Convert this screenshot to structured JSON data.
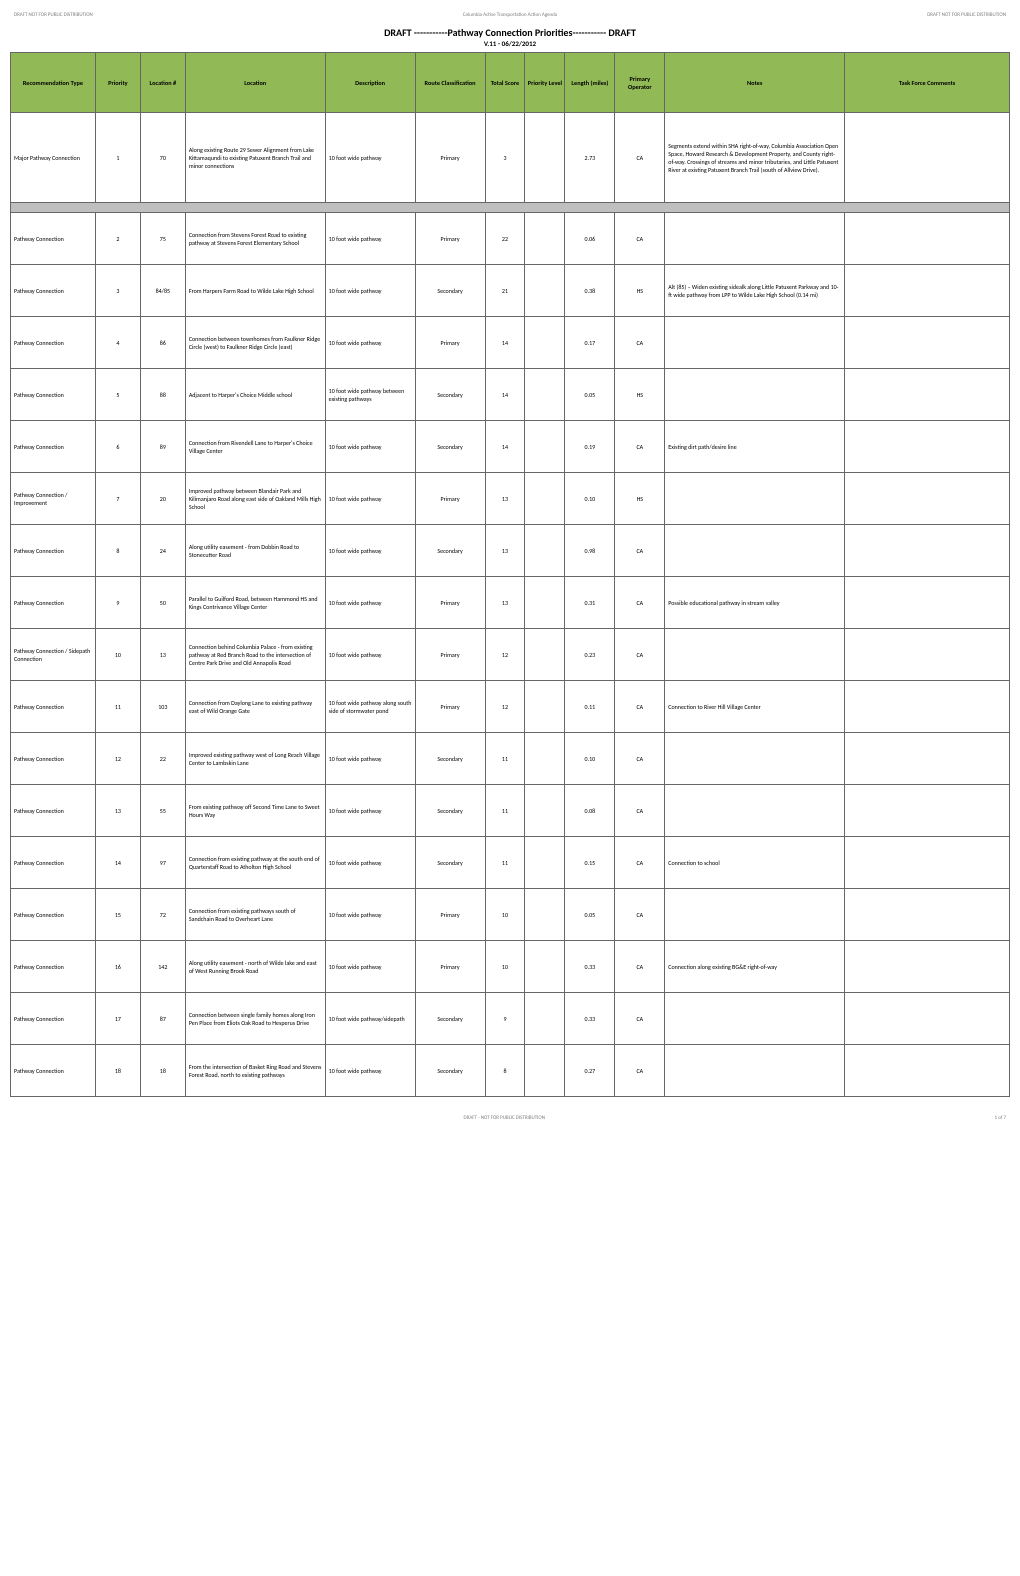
{
  "header": {
    "left_label": "DRAFT NOT FOR PUBLIC DISTRIBUTION",
    "center_label": "Columbia Active Transportation Action Agenda",
    "right_label": "DRAFT NOT FOR PUBLIC DISTRIBUTION",
    "title": "DRAFT -----------Pathway Connection Priorities----------- DRAFT",
    "subtitle": "V.11 - 06/22/2012"
  },
  "columns": [
    "Recommendation Type",
    "Priority",
    "Location #",
    "Location",
    "Description",
    "Route Classification",
    "Total Score",
    "Priority Level",
    "Length (miles)",
    "Primary Operator",
    "Notes",
    "Task Force Comments"
  ],
  "rows": [
    {
      "type": "Major Pathway Connection",
      "priority": "1",
      "loc": "70",
      "location": "Along existing Route 29 Sewer Alignment from Lake Kittamaqundi to existing Patuxent Branch Trail and minor connections",
      "desc": "10 foot wide pathway",
      "route": "Primary",
      "score": "3",
      "plvl": "",
      "length": "2.73",
      "oper": "CA",
      "notes": "Segments extend within SHA right-of-way, Columbia Association Open Space, Howard Research & Development Property, and County right-of-way. Crossings of streams and minor tributaries, and Little Patuxent River at existing Patuxent Branch Trail (south of Allview Drive).",
      "tfc": "",
      "first": true
    },
    {
      "sep": true
    },
    {
      "type": "Pathway Connection",
      "priority": "2",
      "loc": "75",
      "location": "Connection from Stevens Forest Road to existing pathway at Stevens Forest Elementary School",
      "desc": "10 foot wide pathway",
      "route": "Primary",
      "score": "22",
      "plvl": "",
      "length": "0.06",
      "oper": "CA",
      "notes": "",
      "tfc": ""
    },
    {
      "type": "Pathway Connection",
      "priority": "3",
      "loc": "84/85",
      "location": "From Harpers Farm Road to Wilde Lake High School",
      "desc": "10 foot wide pathway",
      "route": "Secondary",
      "score": "21",
      "plvl": "",
      "length": "0.38",
      "oper": "HS",
      "notes": "Alt (85) – Widen existing sidealk along Little Patuxent Parkway and 10-ft wide pathway from LPP to Wilde Lake High School (0.14 mi)",
      "tfc": ""
    },
    {
      "type": "Pathway Connection",
      "priority": "4",
      "loc": "86",
      "location": "Connection between townhomes from Faulkner Ridge Circle (west) to Faulkner Ridge Circle (east)",
      "desc": "10 foot wide pathway",
      "route": "Primary",
      "score": "14",
      "plvl": "",
      "length": "0.17",
      "oper": "CA",
      "notes": "",
      "tfc": ""
    },
    {
      "type": "Pathway Connection",
      "priority": "5",
      "loc": "88",
      "location": "Adjacent to Harper's Choice Middle school",
      "desc": "10 foot wide pathway between existing pathways",
      "route": "Secondary",
      "score": "14",
      "plvl": "",
      "length": "0.05",
      "oper": "HS",
      "notes": "",
      "tfc": ""
    },
    {
      "type": "Pathway Connection",
      "priority": "6",
      "loc": "89",
      "location": "Connection from Rivendell Lane to Harper's Choice Village Center",
      "desc": "10 foot wide pathway",
      "route": "Secondary",
      "score": "14",
      "plvl": "",
      "length": "0.19",
      "oper": "CA",
      "notes": "Existing dirt path/desire line",
      "tfc": ""
    },
    {
      "type": "Pathway Connection / Improvement",
      "priority": "7",
      "loc": "20",
      "location": "Improved pathway between Blandair Park and Kilimanjaro Road along east side of Oakland Mills High School",
      "desc": "10 foot wide pathway",
      "route": "Primary",
      "score": "13",
      "plvl": "",
      "length": "0.10",
      "oper": "HS",
      "notes": "",
      "tfc": ""
    },
    {
      "type": "Pathway Connection",
      "priority": "8",
      "loc": "24",
      "location": "Along utility easement - from Dobbin Road to Stonecutter Road",
      "desc": "10 foot wide pathway",
      "route": "Secondary",
      "score": "13",
      "plvl": "",
      "length": "0.98",
      "oper": "CA",
      "notes": "",
      "tfc": ""
    },
    {
      "type": "Pathway Connection",
      "priority": "9",
      "loc": "50",
      "location": "Parallel to Guilford Road, between Hammond HS and Kings Contrivance Village Center",
      "desc": "10 foot wide pathway",
      "route": "Primary",
      "score": "13",
      "plvl": "",
      "length": "0.31",
      "oper": "CA",
      "notes": "Possible educational pathway in stream valley",
      "tfc": ""
    },
    {
      "type": "Pathway Connection / Sidepath Connection",
      "priority": "10",
      "loc": "13",
      "location": "Connection behind Columbia Palace - from existing pathway at Red Branch Road to the intersection of Centre Park Drive and Old Annapolis Road",
      "desc": "10 foot wide pathway",
      "route": "Primary",
      "score": "12",
      "plvl": "",
      "length": "0.23",
      "oper": "CA",
      "notes": "",
      "tfc": ""
    },
    {
      "type": "Pathway Connection",
      "priority": "11",
      "loc": "103",
      "location": "Connection from Daylong Lane to existing pathway east of Wild Orange Gate",
      "desc": "10 foot wide pathway along south side of stormwater pond",
      "route": "Primary",
      "score": "12",
      "plvl": "",
      "length": "0.11",
      "oper": "CA",
      "notes": "Connection to River Hill Village Center",
      "tfc": ""
    },
    {
      "type": "Pathway Connection",
      "priority": "12",
      "loc": "22",
      "location": "Improved existing pathway west of Long Reach Village Center to Lambskin Lane",
      "desc": "10 foot wide pathway",
      "route": "Secondary",
      "score": "11",
      "plvl": "",
      "length": "0.10",
      "oper": "CA",
      "notes": "",
      "tfc": ""
    },
    {
      "type": "Pathway Connection",
      "priority": "13",
      "loc": "55",
      "location": "From existing pathway off Second Time Lane to Sweet Hours Way",
      "desc": "10 foot wide pathway",
      "route": "Secondary",
      "score": "11",
      "plvl": "",
      "length": "0.08",
      "oper": "CA",
      "notes": "",
      "tfc": ""
    },
    {
      "type": "Pathway Connection",
      "priority": "14",
      "loc": "97",
      "location": "Connection from existing pathway at the south end of Quarterstaff Road to Atholton High School",
      "desc": "10 foot wide pathway",
      "route": "Secondary",
      "score": "11",
      "plvl": "",
      "length": "0.15",
      "oper": "CA",
      "notes": "Connection to school",
      "tfc": ""
    },
    {
      "type": "Pathway Connection",
      "priority": "15",
      "loc": "72",
      "location": "Connection from existing pathways south of Sandchain Road to Overheart Lane",
      "desc": "10 foot wide pathway",
      "route": "Primary",
      "score": "10",
      "plvl": "",
      "length": "0.05",
      "oper": "CA",
      "notes": "",
      "tfc": ""
    },
    {
      "type": "Pathway Connection",
      "priority": "16",
      "loc": "142",
      "location": "Along utility easement - north of Wilde lake and east of West Running Brook Road",
      "desc": "10 foot wide pathway",
      "route": "Primary",
      "score": "10",
      "plvl": "",
      "length": "0.33",
      "oper": "CA",
      "notes": "Connection along existing BG&E right-of-way",
      "tfc": ""
    },
    {
      "type": "Pathway Connection",
      "priority": "17",
      "loc": "87",
      "location": "Connection between single family homes along Iron Pen Place from Eliots Oak Road to Hesperus Drive",
      "desc": "10 foot wide pathway/sidepath",
      "route": "Secondary",
      "score": "9",
      "plvl": "",
      "length": "0.33",
      "oper": "CA",
      "notes": "",
      "tfc": ""
    },
    {
      "type": "Pathway Connection",
      "priority": "18",
      "loc": "18",
      "location": "From the intersection of Basket Ring Road and Stevens Forest Road, north to existing pathways",
      "desc": "10 foot wide pathway",
      "route": "Secondary",
      "score": "8",
      "plvl": "",
      "length": "0.27",
      "oper": "CA",
      "notes": "",
      "tfc": ""
    }
  ],
  "footer": {
    "left": "",
    "center": "DRAFT - NOT FOR PUBLIC DISTRIBUTION",
    "right": "1 of 7"
  },
  "styling": {
    "header_bg": "#91b956",
    "border_color": "#666666",
    "separator_bg": "#bfbfbf",
    "page_bg": "#ffffff",
    "text_color": "#000000",
    "label_color": "#808080"
  }
}
